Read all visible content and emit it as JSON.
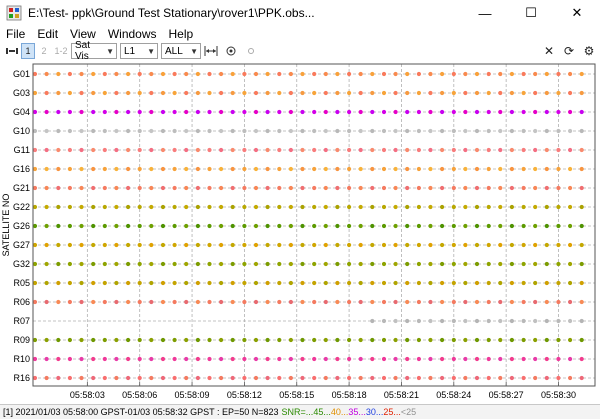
{
  "window": {
    "title": "E:\\Test- ppk\\Ground Test Stationary\\rover1\\PPK.obs...",
    "minimize_glyph": "—",
    "maximize_glyph": "☐",
    "close_glyph": "✕"
  },
  "menu": [
    "File",
    "Edit",
    "View",
    "Windows",
    "Help"
  ],
  "toolbar": {
    "btn_1": "1",
    "btn_2": "2",
    "btn_12": "1-2",
    "plot_type": "Sat Vis",
    "freq": "L1",
    "sats": "ALL"
  },
  "chart_data": {
    "type": "scatter",
    "ylabel": "SATELLITE NO",
    "x_ticks": [
      "05:58:03",
      "05:58:06",
      "05:58:09",
      "05:58:12",
      "05:58:15",
      "05:58:18",
      "05:58:21",
      "05:58:24",
      "05:58:27",
      "05:58:30"
    ],
    "x_range_seconds": [
      0,
      32
    ],
    "sample_interval_seconds": 0.6666,
    "grid": true,
    "series": [
      {
        "name": "G01",
        "snr_colors": [
          "#f97a5c",
          "#f98a4e",
          "#f9a13a"
        ],
        "start": 0
      },
      {
        "name": "G03",
        "snr_colors": [
          "#f7a43a",
          "#f97a5c",
          "#f79a40"
        ],
        "start": 0
      },
      {
        "name": "G04",
        "snr_colors": [
          "#d400e8",
          "#e600c8",
          "#c800f0"
        ],
        "start": 0
      },
      {
        "name": "G10",
        "snr_colors": [
          "#bdbdbd",
          "#c4c4c4",
          "#b8b8b8"
        ],
        "start": 0
      },
      {
        "name": "G11",
        "snr_colors": [
          "#f87c7c",
          "#f46e82",
          "#f98a6e"
        ],
        "start": 0
      },
      {
        "name": "G16",
        "snr_colors": [
          "#f7a23a",
          "#f8b23a",
          "#f89440"
        ],
        "start": 0
      },
      {
        "name": "G21",
        "snr_colors": [
          "#f57a60",
          "#f88656",
          "#f06e70"
        ],
        "start": 0
      },
      {
        "name": "G22",
        "snr_colors": [
          "#b8a800",
          "#c4aa00",
          "#aaa200"
        ],
        "start": 0
      },
      {
        "name": "G26",
        "snr_colors": [
          "#5c9a00",
          "#6ea000",
          "#4e9200"
        ],
        "start": 0
      },
      {
        "name": "G27",
        "snr_colors": [
          "#d0a600",
          "#e0a200",
          "#c4a800"
        ],
        "start": 0
      },
      {
        "name": "G32",
        "snr_colors": [
          "#8ea400",
          "#a0a600",
          "#7c9c00"
        ],
        "start": 0
      },
      {
        "name": "R05",
        "snr_colors": [
          "#c4a400",
          "#b0a400",
          "#d0a000"
        ],
        "start": 0
      },
      {
        "name": "R06",
        "snr_colors": [
          "#f47a60",
          "#e86a70",
          "#f88a56"
        ],
        "start": 0
      },
      {
        "name": "R07",
        "snr_colors": [
          "#b8b8b8",
          "#c0c0c0",
          "#b4b4b4"
        ],
        "start": 0.62
      },
      {
        "name": "R09",
        "snr_colors": [
          "#7c9c00",
          "#8aa000",
          "#6e9800"
        ],
        "start": 0
      },
      {
        "name": "R10",
        "snr_colors": [
          "#f0389a",
          "#e83aa8",
          "#f23c8e"
        ],
        "start": 0
      },
      {
        "name": "R16",
        "snr_colors": [
          "#f86e6e",
          "#f47a60",
          "#ee6878"
        ],
        "start": 0
      }
    ]
  },
  "status": {
    "text": "[1] 2021/01/03 05:58:00 GPST-01/03 05:58:32 GPST : EP=50 N=823",
    "snr_label": "SNR=...",
    "snr_levels": [
      {
        "label": "45",
        "color": "#2a8a00"
      },
      {
        "label": "40",
        "color": "#e09000"
      },
      {
        "label": "35",
        "color": "#c000e0"
      },
      {
        "label": "30",
        "color": "#2040e0"
      },
      {
        "label": "25",
        "color": "#e02000"
      },
      {
        "label": "<25",
        "color": "#909090"
      }
    ]
  }
}
